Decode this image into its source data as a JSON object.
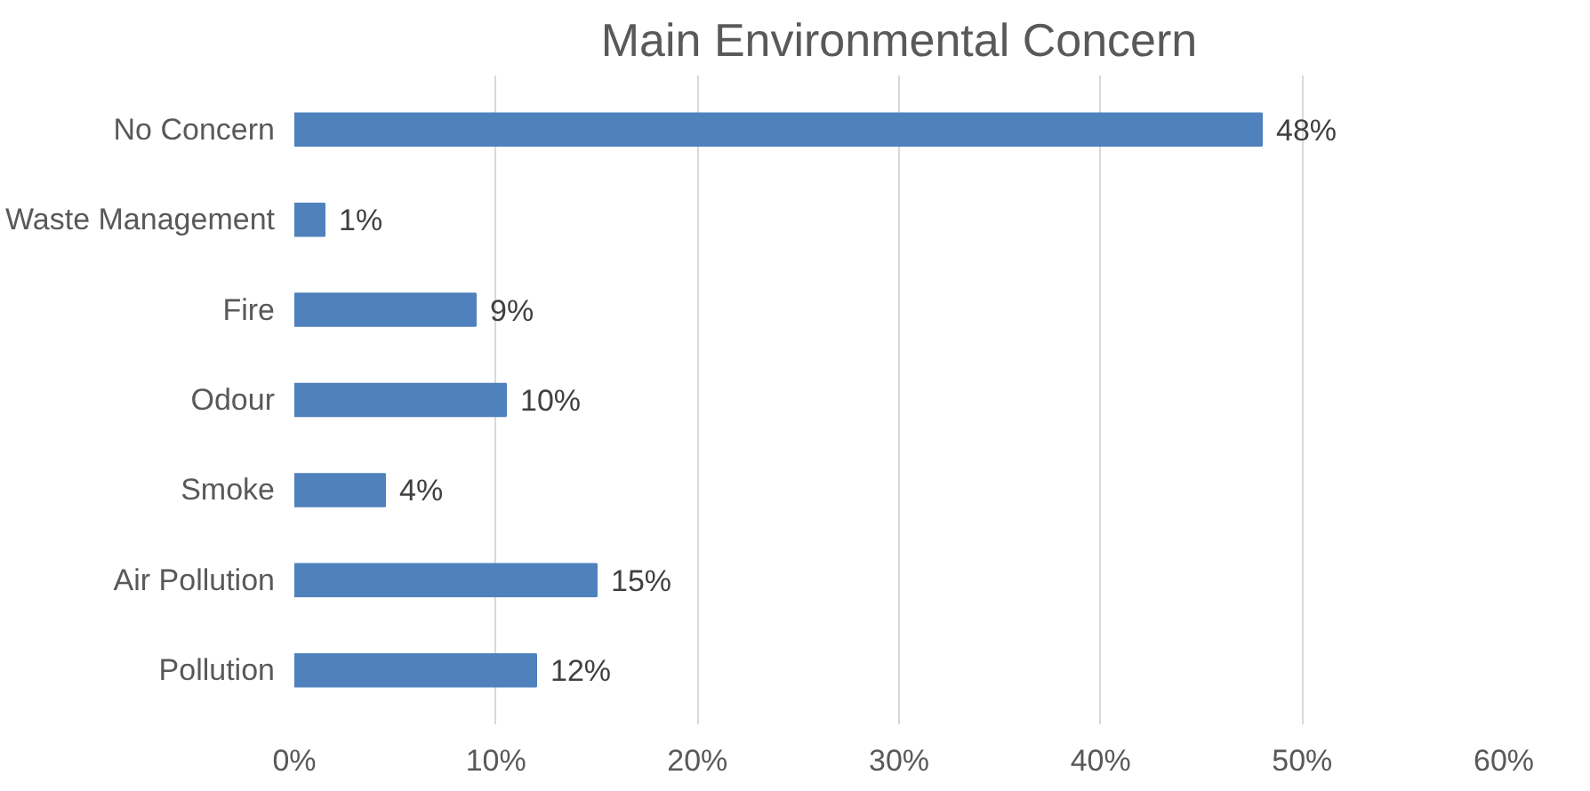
{
  "chart_data": {
    "type": "bar",
    "orientation": "horizontal",
    "title": "Main Environmental Concern",
    "categories": [
      "No Concern",
      "Waste Management",
      "Fire",
      "Odour",
      "Smoke",
      "Air Pollution",
      "Pollution"
    ],
    "values": [
      48,
      1.5,
      9,
      10.5,
      4.5,
      15,
      12
    ],
    "value_labels": [
      "48%",
      "1%",
      "9%",
      "10%",
      "4%",
      "15%",
      "12%"
    ],
    "color": "#4f81bd",
    "xlim": [
      0,
      60
    ],
    "xticks": [
      {
        "value": 0,
        "label": "0%"
      },
      {
        "value": 10,
        "label": "10%"
      },
      {
        "value": 20,
        "label": "20%"
      },
      {
        "value": 30,
        "label": "30%"
      },
      {
        "value": 40,
        "label": "40%"
      },
      {
        "value": 50,
        "label": "50%"
      },
      {
        "value": 60,
        "label": "60%"
      }
    ],
    "grid": "x"
  }
}
